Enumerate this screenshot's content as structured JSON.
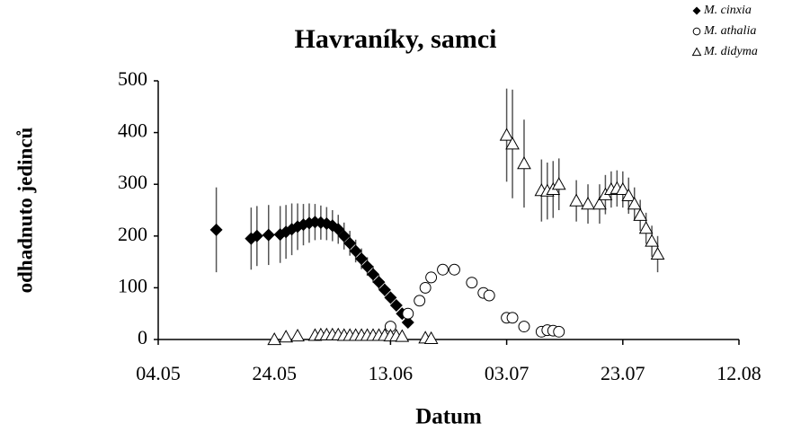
{
  "chart_data": {
    "type": "scatter",
    "title": "Havraníky, samci",
    "x_label": "Datum",
    "y_label": "odhadnuto jedinců",
    "xlim": [
      124,
      224
    ],
    "xticks": [
      {
        "value": 124,
        "label": "04.05"
      },
      {
        "value": 144,
        "label": "24.05"
      },
      {
        "value": 164,
        "label": "13.06"
      },
      {
        "value": 184,
        "label": "03.07"
      },
      {
        "value": 204,
        "label": "23.07"
      },
      {
        "value": 224,
        "label": "12.08"
      }
    ],
    "ylim": [
      0,
      500
    ],
    "yticks": [
      0,
      100,
      200,
      300,
      400,
      500
    ],
    "grid": false,
    "legend": "top-right",
    "series": [
      {
        "name": "M. cinxia",
        "marker": "diamond",
        "color": "#000000",
        "x": [
          134,
          140,
          141,
          143,
          145,
          146,
          147,
          148,
          149,
          150,
          151,
          152,
          153,
          154,
          155,
          156,
          157,
          158,
          159,
          160,
          161,
          162,
          163,
          164,
          165,
          166,
          167
        ],
        "values": [
          212,
          195,
          200,
          202,
          203,
          208,
          213,
          218,
          222,
          225,
          227,
          226,
          224,
          220,
          213,
          200,
          186,
          171,
          156,
          141,
          126,
          111,
          96,
          81,
          66,
          50,
          33
        ],
        "errors": [
          82,
          60,
          58,
          58,
          55,
          52,
          50,
          45,
          40,
          38,
          35,
          33,
          32,
          30,
          28,
          26,
          24,
          22,
          20,
          18,
          16,
          14,
          12,
          10,
          8,
          6,
          5
        ]
      },
      {
        "name": "M. athalia",
        "marker": "circle",
        "color": "#000000",
        "x": [
          164,
          167,
          169,
          170,
          171,
          173,
          175,
          178,
          180,
          181,
          184,
          185,
          187,
          190,
          191,
          192,
          193
        ],
        "values": [
          25,
          50,
          75,
          100,
          120,
          135,
          135,
          110,
          90,
          85,
          42,
          42,
          25,
          15,
          18,
          17,
          15
        ]
      },
      {
        "name": "M. didyma",
        "marker": "triangle",
        "color": "#000000",
        "x": [
          144,
          146,
          148,
          151,
          152,
          153,
          154,
          155,
          156,
          157,
          158,
          159,
          160,
          161,
          162,
          163,
          164,
          165,
          166,
          170,
          171,
          184,
          185,
          187,
          190,
          191,
          192,
          193,
          196,
          198,
          200,
          201,
          202,
          203,
          204,
          205,
          206,
          207,
          208,
          209,
          210
        ],
        "values": [
          0,
          5,
          7,
          8,
          9,
          9,
          9,
          9,
          8,
          8,
          8,
          8,
          8,
          8,
          8,
          8,
          7,
          7,
          6,
          3,
          2,
          395,
          378,
          340,
          288,
          287,
          290,
          300,
          268,
          262,
          262,
          280,
          290,
          292,
          290,
          278,
          262,
          240,
          215,
          190,
          165
        ],
        "errors": [
          null,
          null,
          null,
          null,
          null,
          null,
          null,
          null,
          null,
          null,
          null,
          null,
          null,
          null,
          null,
          null,
          null,
          null,
          null,
          null,
          null,
          90,
          105,
          85,
          60,
          55,
          55,
          50,
          40,
          38,
          38,
          38,
          35,
          35,
          35,
          35,
          32,
          30,
          30,
          30,
          35
        ]
      }
    ]
  }
}
